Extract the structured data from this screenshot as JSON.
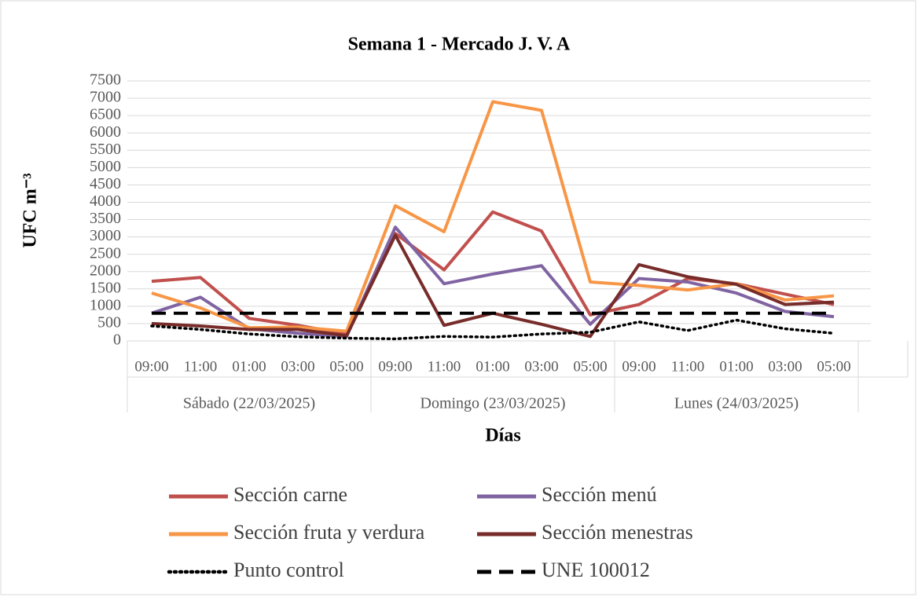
{
  "chart_data": {
    "type": "line",
    "title": "Semana 1 - Mercado J. V. A",
    "x_label": "Días",
    "y_label": "UFC m⁻³",
    "categories": [
      "09:00",
      "11:00",
      "01:00",
      "03:00",
      "05:00",
      "09:00",
      "11:00",
      "01:00",
      "03:00",
      "05:00",
      "09:00",
      "11:00",
      "01:00",
      "03:00",
      "05:00"
    ],
    "groups": [
      "Sábado (22/03/2025)",
      "Domingo (23/03/2025)",
      "Lunes (24/03/2025)"
    ],
    "ylim": [
      0,
      7500
    ],
    "yticks": [
      0,
      500,
      1000,
      1500,
      2000,
      2500,
      3000,
      3500,
      4000,
      4500,
      5000,
      5500,
      6000,
      6500,
      7000,
      7500
    ],
    "grid": true,
    "series": [
      {
        "name": "Sección carne",
        "color": "#c0504d",
        "style": "solid",
        "values": [
          1720,
          1830,
          650,
          450,
          200,
          3100,
          2050,
          3720,
          3170,
          750,
          1050,
          1800,
          1650,
          1350,
          1050
        ]
      },
      {
        "name": "Sección menú",
        "color": "#8064a2",
        "style": "solid",
        "values": [
          800,
          1260,
          350,
          220,
          130,
          3280,
          1650,
          1930,
          2170,
          480,
          1800,
          1700,
          1380,
          850,
          700
        ]
      },
      {
        "name": "Sección fruta y verdura",
        "color": "#f79646",
        "style": "solid",
        "values": [
          1380,
          950,
          380,
          400,
          280,
          3900,
          3150,
          6900,
          6650,
          1700,
          1600,
          1470,
          1650,
          1180,
          1300
        ]
      },
      {
        "name": "Sección menestras",
        "color": "#772c2a",
        "style": "solid",
        "values": [
          500,
          430,
          330,
          330,
          150,
          3050,
          450,
          800,
          480,
          130,
          2200,
          1850,
          1630,
          1050,
          1120
        ]
      },
      {
        "name": "Punto control",
        "color": "#000000",
        "style": "dotted",
        "values": [
          430,
          330,
          200,
          120,
          80,
          60,
          130,
          110,
          200,
          250,
          550,
          300,
          600,
          350,
          220
        ]
      },
      {
        "name": "UNE 100012",
        "color": "#000000",
        "style": "dashed",
        "values": [
          800,
          800,
          800,
          800,
          800,
          800,
          800,
          800,
          800,
          800,
          800,
          800,
          800,
          800,
          800
        ]
      }
    ]
  }
}
